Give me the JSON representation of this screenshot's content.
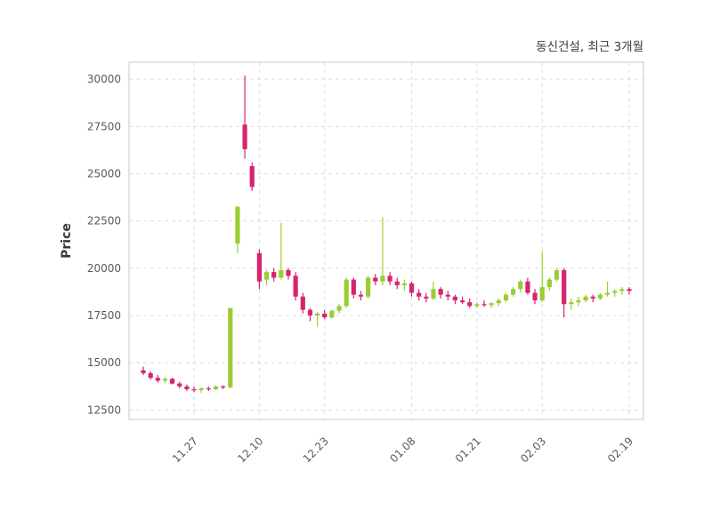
{
  "chart_data": {
    "type": "candlestick",
    "title": "동신건설, 최근 3개월",
    "ylabel": "Price",
    "xlabel": "",
    "ylim": [
      12000,
      30900
    ],
    "yticks": [
      12500,
      15000,
      17500,
      20000,
      22500,
      25000,
      27500,
      30000
    ],
    "xticks": [
      "11.27",
      "12.10",
      "12.23",
      "01.08",
      "01.21",
      "02.03",
      "02.19"
    ],
    "grid": "dashed",
    "legend": "none",
    "colors": {
      "up": "#9ACD32",
      "down": "#D6246E",
      "grid": "#dcdcdc",
      "spine": "#c9c9c9",
      "tick_label": "#595959",
      "title_text": "#3a3a3a",
      "background": "#ffffff"
    },
    "columns": [
      "date",
      "open",
      "high",
      "low",
      "close"
    ],
    "candles": [
      [
        "11.18",
        14600,
        14800,
        14350,
        14450
      ],
      [
        "11.19",
        14450,
        14550,
        14100,
        14200
      ],
      [
        "11.20",
        14200,
        14350,
        13950,
        14050
      ],
      [
        "11.21",
        14050,
        14250,
        13900,
        14150
      ],
      [
        "11.22",
        14150,
        14200,
        13850,
        13900
      ],
      [
        "11.25",
        13900,
        14000,
        13650,
        13750
      ],
      [
        "11.26",
        13750,
        13850,
        13500,
        13600
      ],
      [
        "11.27",
        13600,
        13750,
        13450,
        13550
      ],
      [
        "11.28",
        13550,
        13700,
        13400,
        13650
      ],
      [
        "11.29",
        13650,
        13750,
        13500,
        13600
      ],
      [
        "12.02",
        13600,
        13800,
        13550,
        13750
      ],
      [
        "12.03",
        13750,
        13800,
        13600,
        13700
      ],
      [
        "12.04",
        13700,
        17900,
        13650,
        17900
      ],
      [
        "12.05",
        21300,
        23300,
        20800,
        23250
      ],
      [
        "12.06",
        27600,
        30200,
        25800,
        26300
      ],
      [
        "12.09",
        25400,
        25600,
        24100,
        24300
      ],
      [
        "12.10",
        20800,
        21000,
        18900,
        19300
      ],
      [
        "12.11",
        19400,
        19900,
        19100,
        19800
      ],
      [
        "12.12",
        19800,
        20000,
        19300,
        19500
      ],
      [
        "12.13",
        19500,
        22400,
        19400,
        19900
      ],
      [
        "12.16",
        19900,
        20000,
        19400,
        19600
      ],
      [
        "12.17",
        19600,
        19800,
        18300,
        18500
      ],
      [
        "12.18",
        18500,
        18700,
        17600,
        17800
      ],
      [
        "12.19",
        17800,
        17900,
        17200,
        17500
      ],
      [
        "12.20",
        17500,
        17700,
        16900,
        17600
      ],
      [
        "12.23",
        17600,
        17800,
        17300,
        17400
      ],
      [
        "12.24",
        17400,
        17800,
        17350,
        17750
      ],
      [
        "12.25",
        17750,
        18100,
        17600,
        18000
      ],
      [
        "12.26",
        18000,
        19500,
        17900,
        19400
      ],
      [
        "12.27",
        19400,
        19500,
        18400,
        18600
      ],
      [
        "12.30",
        18600,
        18800,
        18300,
        18500
      ],
      [
        "12.31",
        18500,
        19600,
        18400,
        19500
      ],
      [
        "01.01",
        19500,
        19700,
        19100,
        19300
      ],
      [
        "01.02",
        19300,
        22700,
        19100,
        19600
      ],
      [
        "01.03",
        19600,
        19800,
        19100,
        19300
      ],
      [
        "01.06",
        19300,
        19500,
        18900,
        19100
      ],
      [
        "01.07",
        19100,
        19400,
        18800,
        19200
      ],
      [
        "01.08",
        19200,
        19300,
        18500,
        18700
      ],
      [
        "01.09",
        18700,
        18900,
        18300,
        18500
      ],
      [
        "01.10",
        18500,
        18700,
        18200,
        18400
      ],
      [
        "01.13",
        18400,
        19300,
        18300,
        18900
      ],
      [
        "01.14",
        18900,
        19000,
        18400,
        18600
      ],
      [
        "01.15",
        18600,
        18800,
        18300,
        18500
      ],
      [
        "01.16",
        18500,
        18600,
        18100,
        18300
      ],
      [
        "01.17",
        18300,
        18500,
        18100,
        18200
      ],
      [
        "01.20",
        18200,
        18400,
        17900,
        18000
      ],
      [
        "01.21",
        18000,
        18200,
        17900,
        18100
      ],
      [
        "01.22",
        18100,
        18300,
        17950,
        18050
      ],
      [
        "01.23",
        18050,
        18200,
        17900,
        18150
      ],
      [
        "01.24",
        18150,
        18400,
        18000,
        18300
      ],
      [
        "01.27",
        18300,
        18700,
        18200,
        18600
      ],
      [
        "01.28",
        18600,
        19000,
        18500,
        18900
      ],
      [
        "01.29",
        18900,
        19400,
        18700,
        19300
      ],
      [
        "01.30",
        19300,
        19500,
        18600,
        18700
      ],
      [
        "01.31",
        18700,
        18900,
        18100,
        18300
      ],
      [
        "02.03",
        18300,
        20900,
        18200,
        19000
      ],
      [
        "02.04",
        19000,
        19500,
        18800,
        19400
      ],
      [
        "02.05",
        19400,
        20000,
        19300,
        19900
      ],
      [
        "02.06",
        19900,
        20000,
        17400,
        18100
      ],
      [
        "02.07",
        18100,
        18400,
        17800,
        18200
      ],
      [
        "02.10",
        18200,
        18500,
        18000,
        18300
      ],
      [
        "02.11",
        18300,
        18600,
        18200,
        18500
      ],
      [
        "02.12",
        18500,
        18600,
        18200,
        18400
      ],
      [
        "02.13",
        18400,
        18700,
        18300,
        18600
      ],
      [
        "02.14",
        18600,
        19300,
        18500,
        18700
      ],
      [
        "02.17",
        18700,
        18900,
        18500,
        18800
      ],
      [
        "02.18",
        18800,
        19000,
        18600,
        18900
      ],
      [
        "02.19",
        18900,
        19000,
        18600,
        18800
      ]
    ]
  }
}
